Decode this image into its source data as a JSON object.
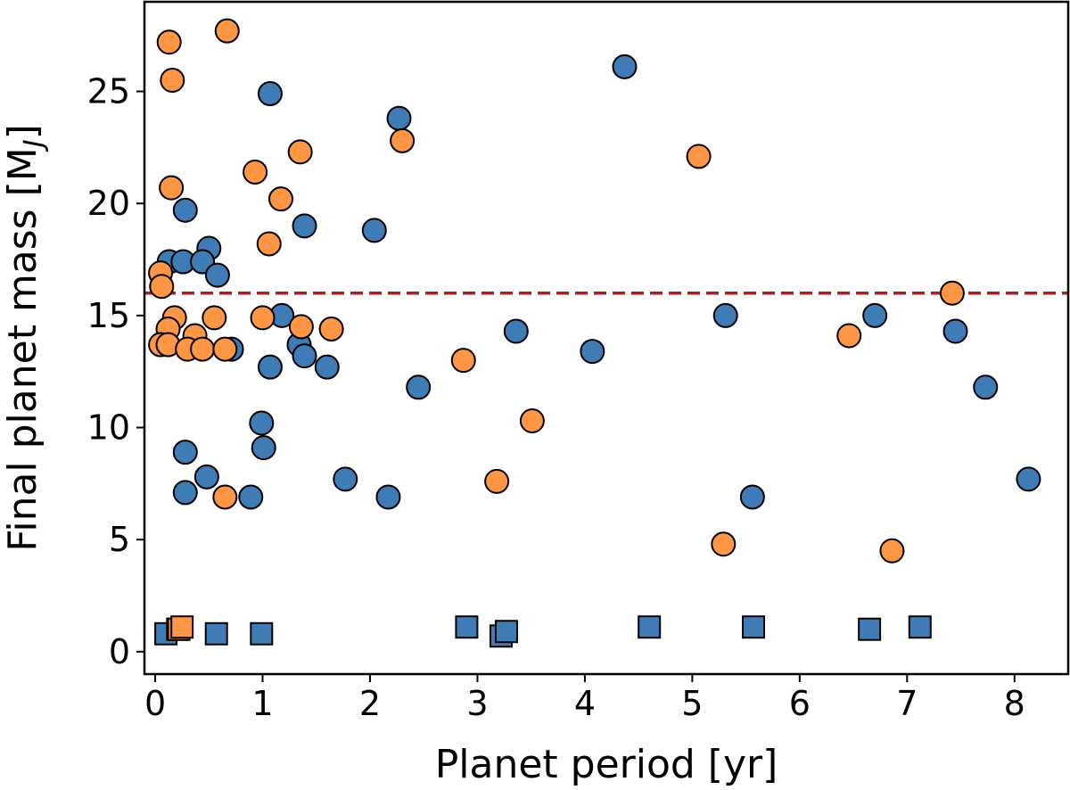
{
  "chart_data": {
    "type": "scatter",
    "xlabel": "Planet period [yr]",
    "ylabel_main": "Final planet mass [M",
    "ylabel_sub": "J",
    "ylabel_end": "]",
    "xlim": [
      -0.1,
      8.5
    ],
    "ylim": [
      -1,
      29
    ],
    "xticks": [
      0,
      1,
      2,
      3,
      4,
      5,
      6,
      7,
      8
    ],
    "yticks": [
      0,
      5,
      10,
      15,
      20,
      25
    ],
    "grid": false,
    "reference_line": {
      "y": 16,
      "color": "#b01c1c",
      "style": "dashed"
    },
    "colors": {
      "blue": "#3f7cb5",
      "orange": "#ff9645",
      "edge": "#000000"
    },
    "series": [
      {
        "name": "blue-circles",
        "marker": "circle",
        "color": "blue",
        "points": [
          [
            4.37,
            26.1
          ],
          [
            1.07,
            24.9
          ],
          [
            2.27,
            23.8
          ],
          [
            0.28,
            19.7
          ],
          [
            1.39,
            19.0
          ],
          [
            2.04,
            18.8
          ],
          [
            0.5,
            18.0
          ],
          [
            0.13,
            17.4
          ],
          [
            0.26,
            17.4
          ],
          [
            0.44,
            17.4
          ],
          [
            0.58,
            16.8
          ],
          [
            1.18,
            15.0
          ],
          [
            5.31,
            15.0
          ],
          [
            6.7,
            15.0
          ],
          [
            3.36,
            14.3
          ],
          [
            7.45,
            14.3
          ],
          [
            0.71,
            13.5
          ],
          [
            1.34,
            13.7
          ],
          [
            1.39,
            13.2
          ],
          [
            4.07,
            13.4
          ],
          [
            1.07,
            12.7
          ],
          [
            1.6,
            12.7
          ],
          [
            2.45,
            11.8
          ],
          [
            7.73,
            11.8
          ],
          [
            0.99,
            10.2
          ],
          [
            1.01,
            9.1
          ],
          [
            0.28,
            8.9
          ],
          [
            0.48,
            7.8
          ],
          [
            1.77,
            7.7
          ],
          [
            8.13,
            7.7
          ],
          [
            0.28,
            7.1
          ],
          [
            0.89,
            6.9
          ],
          [
            2.17,
            6.9
          ],
          [
            5.56,
            6.9
          ]
        ]
      },
      {
        "name": "orange-circles",
        "marker": "circle",
        "color": "orange",
        "points": [
          [
            0.67,
            27.7
          ],
          [
            0.13,
            27.2
          ],
          [
            0.16,
            25.5
          ],
          [
            1.35,
            22.3
          ],
          [
            2.3,
            22.8
          ],
          [
            5.06,
            22.1
          ],
          [
            0.93,
            21.4
          ],
          [
            1.17,
            20.2
          ],
          [
            0.15,
            20.7
          ],
          [
            1.06,
            18.2
          ],
          [
            0.05,
            16.9
          ],
          [
            0.06,
            16.3
          ],
          [
            7.42,
            16.0
          ],
          [
            0.18,
            14.9
          ],
          [
            0.55,
            14.9
          ],
          [
            1.0,
            14.9
          ],
          [
            0.12,
            14.4
          ],
          [
            1.36,
            14.5
          ],
          [
            1.64,
            14.4
          ],
          [
            0.37,
            14.1
          ],
          [
            6.46,
            14.1
          ],
          [
            0.05,
            13.7
          ],
          [
            0.12,
            13.7
          ],
          [
            0.3,
            13.5
          ],
          [
            0.44,
            13.5
          ],
          [
            0.65,
            13.5
          ],
          [
            2.87,
            13.0
          ],
          [
            3.51,
            10.3
          ],
          [
            3.18,
            7.6
          ],
          [
            0.65,
            6.9
          ],
          [
            5.29,
            4.8
          ],
          [
            6.86,
            4.5
          ]
        ]
      },
      {
        "name": "blue-squares",
        "marker": "square",
        "color": "blue",
        "points": [
          [
            0.1,
            0.8
          ],
          [
            0.21,
            1.0
          ],
          [
            0.57,
            0.8
          ],
          [
            0.99,
            0.8
          ],
          [
            2.9,
            1.1
          ],
          [
            3.22,
            0.7
          ],
          [
            3.27,
            0.9
          ],
          [
            4.6,
            1.1
          ],
          [
            5.57,
            1.1
          ],
          [
            6.65,
            1.0
          ],
          [
            7.12,
            1.1
          ]
        ]
      },
      {
        "name": "orange-squares",
        "marker": "square",
        "color": "orange",
        "points": [
          [
            0.22,
            1.0
          ],
          [
            0.25,
            1.1
          ]
        ]
      }
    ]
  }
}
